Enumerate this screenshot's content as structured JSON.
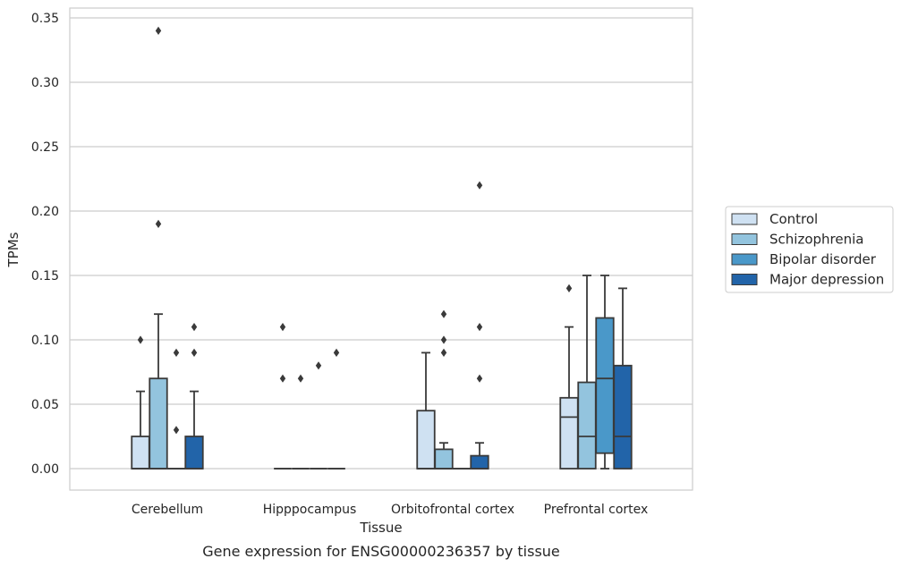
{
  "chart_data": {
    "type": "box",
    "title": "",
    "caption": "Gene expression for ENSG00000236357 by tissue",
    "xlabel": "Tissue",
    "ylabel": "TPMs",
    "ylim": [
      -0.017,
      0.357
    ],
    "yticks": [
      "0.00",
      "0.05",
      "0.10",
      "0.15",
      "0.20",
      "0.25",
      "0.30",
      "0.35"
    ],
    "ytick_values": [
      0,
      0.05,
      0.1,
      0.15,
      0.2,
      0.25,
      0.3,
      0.35
    ],
    "grid": "horizontal",
    "legend_position": "right",
    "categories": [
      "Cerebellum",
      "Hipppocampus",
      "Orbitofrontal cortex",
      "Prefrontal cortex"
    ],
    "series": [
      {
        "name": "Control",
        "color": "#cfe1f2"
      },
      {
        "name": "Schizophrenia",
        "color": "#93c4de"
      },
      {
        "name": "Bipolar disorder",
        "color": "#4a98c9"
      },
      {
        "name": "Major depression",
        "color": "#2264a9"
      }
    ],
    "boxes": [
      [
        {
          "q1": 0,
          "median": 0,
          "q3": 0.025,
          "whisker_low": 0,
          "whisker_high": 0.06,
          "outliers": [
            0.1
          ]
        },
        {
          "q1": 0,
          "median": 0,
          "q3": 0.07,
          "whisker_low": 0,
          "whisker_high": 0.12,
          "outliers": [
            0.19,
            0.34
          ]
        },
        {
          "q1": 0,
          "median": 0,
          "q3": 0,
          "whisker_low": 0,
          "whisker_high": 0,
          "outliers": [
            0.09,
            0.03
          ]
        },
        {
          "q1": 0,
          "median": 0,
          "q3": 0.025,
          "whisker_low": 0,
          "whisker_high": 0.06,
          "outliers": [
            0.11,
            0.09
          ]
        }
      ],
      [
        {
          "q1": 0,
          "median": 0,
          "q3": 0,
          "whisker_low": 0,
          "whisker_high": 0,
          "outliers": [
            0.11,
            0.07
          ]
        },
        {
          "q1": 0,
          "median": 0,
          "q3": 0,
          "whisker_low": 0,
          "whisker_high": 0,
          "outliers": [
            0.07
          ]
        },
        {
          "q1": 0,
          "median": 0,
          "q3": 0,
          "whisker_low": 0,
          "whisker_high": 0,
          "outliers": [
            0.08
          ]
        },
        {
          "q1": 0,
          "median": 0,
          "q3": 0,
          "whisker_low": 0,
          "whisker_high": 0,
          "outliers": [
            0.09
          ]
        }
      ],
      [
        {
          "q1": 0,
          "median": 0,
          "q3": 0.045,
          "whisker_low": 0,
          "whisker_high": 0.09,
          "outliers": []
        },
        {
          "q1": 0,
          "median": 0,
          "q3": 0.015,
          "whisker_low": 0,
          "whisker_high": 0.02,
          "outliers": [
            0.12,
            0.1,
            0.09
          ]
        },
        {
          "q1": 0,
          "median": 0,
          "q3": 0,
          "whisker_low": 0,
          "whisker_high": 0,
          "outliers": []
        },
        {
          "q1": 0,
          "median": 0,
          "q3": 0.01,
          "whisker_low": 0,
          "whisker_high": 0.02,
          "outliers": [
            0.22,
            0.11,
            0.07
          ]
        }
      ],
      [
        {
          "q1": 0,
          "median": 0.04,
          "q3": 0.055,
          "whisker_low": 0,
          "whisker_high": 0.11,
          "outliers": [
            0.14
          ]
        },
        {
          "q1": 0,
          "median": 0.025,
          "q3": 0.067,
          "whisker_low": 0,
          "whisker_high": 0.15,
          "outliers": []
        },
        {
          "q1": 0.012,
          "median": 0.07,
          "q3": 0.117,
          "whisker_low": 0,
          "whisker_high": 0.15,
          "outliers": []
        },
        {
          "q1": 0,
          "median": 0.025,
          "q3": 0.08,
          "whisker_low": 0,
          "whisker_high": 0.14,
          "outliers": []
        }
      ]
    ]
  }
}
